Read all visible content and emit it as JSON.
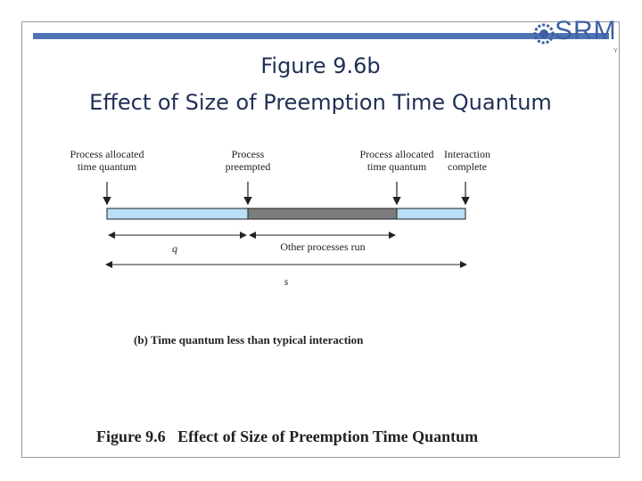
{
  "slide": {
    "title_line1": "Figure 9.6b",
    "title_line2": "Effect of Size of Preemption Time Quantum"
  },
  "logo": {
    "text": "SRM",
    "tag": "Y"
  },
  "diagram": {
    "top_labels": [
      {
        "line1": "Process allocated",
        "line2": "time quantum"
      },
      {
        "line1": "Process",
        "line2": "preempted"
      },
      {
        "line1": "Process allocated",
        "line2": "time quantum"
      },
      {
        "line1": "Interaction",
        "line2": "complete"
      }
    ],
    "segments": [
      {
        "label": "process-run",
        "color": "#b7dff5"
      },
      {
        "label": "other-processes",
        "color": "#7d7d80"
      },
      {
        "label": "process-run",
        "color": "#b7dff5"
      }
    ],
    "spans": {
      "q_label": "q",
      "other_label": "Other processes run",
      "s_label": "s"
    },
    "sub_caption": "(b) Time quantum less than typical interaction",
    "main_caption": "Figure 9.6   Effect of Size of Preemption Time Quantum"
  }
}
